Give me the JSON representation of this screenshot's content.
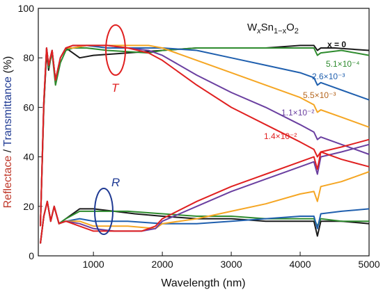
{
  "chart_data": {
    "type": "line",
    "title": "",
    "formula": {
      "main": "W",
      "sub1": "x",
      "mid": "Sn",
      "sub2": "1−x",
      "end": "O",
      "sub3": "2"
    },
    "xlabel": "Wavelength (nm)",
    "ylabel_parts": [
      {
        "text": "Reflectace",
        "color": "#c0392b"
      },
      {
        "text": " / ",
        "color": "#111111"
      },
      {
        "text": "Transmittance",
        "color": "#1f3a93"
      },
      {
        "text": " (%)",
        "color": "#111111"
      }
    ],
    "xlim": [
      200,
      5000
    ],
    "ylim": [
      0,
      100
    ],
    "xticks": [
      1000,
      2000,
      3000,
      4000,
      5000
    ],
    "yticks": [
      0,
      20,
      40,
      60,
      80,
      100
    ],
    "grid": false,
    "labels": {
      "T": {
        "text": "T",
        "color": "#e02020"
      },
      "R": {
        "text": "R",
        "color": "#1f3a93"
      },
      "x0": {
        "text": "x = 0",
        "color": "#111111"
      }
    },
    "series": [
      {
        "name": "x = 0",
        "color": "#1a1a1a",
        "label": "x = 0",
        "T": [
          [
            230,
            12
          ],
          [
            280,
            60
          ],
          [
            320,
            82
          ],
          [
            350,
            75
          ],
          [
            400,
            83
          ],
          [
            450,
            70
          ],
          [
            520,
            80
          ],
          [
            600,
            84
          ],
          [
            700,
            82
          ],
          [
            800,
            80
          ],
          [
            1000,
            81
          ],
          [
            1500,
            82
          ],
          [
            2000,
            83
          ],
          [
            2500,
            84
          ],
          [
            3000,
            84
          ],
          [
            3500,
            84
          ],
          [
            4000,
            85
          ],
          [
            4200,
            85
          ],
          [
            4250,
            83
          ],
          [
            4300,
            84
          ],
          [
            4500,
            84
          ],
          [
            5000,
            83
          ]
        ],
        "R": [
          [
            230,
            5
          ],
          [
            280,
            16
          ],
          [
            330,
            22
          ],
          [
            380,
            14
          ],
          [
            430,
            20
          ],
          [
            500,
            13
          ],
          [
            600,
            15
          ],
          [
            800,
            19
          ],
          [
            1000,
            19
          ],
          [
            1300,
            18
          ],
          [
            1600,
            17
          ],
          [
            2000,
            16
          ],
          [
            2500,
            15
          ],
          [
            3000,
            15
          ],
          [
            3500,
            14
          ],
          [
            4000,
            14
          ],
          [
            4200,
            14
          ],
          [
            4250,
            8
          ],
          [
            4300,
            14
          ],
          [
            4600,
            14
          ],
          [
            5000,
            13
          ]
        ]
      },
      {
        "name": "5.1×10⁻⁴",
        "color": "#2e8b2e",
        "label": "5.1×10⁻⁴",
        "T": [
          [
            230,
            12
          ],
          [
            280,
            60
          ],
          [
            320,
            83
          ],
          [
            350,
            76
          ],
          [
            400,
            82
          ],
          [
            450,
            69
          ],
          [
            520,
            78
          ],
          [
            600,
            83
          ],
          [
            700,
            84
          ],
          [
            900,
            84
          ],
          [
            1200,
            83
          ],
          [
            1800,
            82
          ],
          [
            2000,
            83
          ],
          [
            2500,
            84
          ],
          [
            3000,
            84
          ],
          [
            3500,
            84
          ],
          [
            4000,
            84
          ],
          [
            4200,
            84
          ],
          [
            4250,
            81
          ],
          [
            4300,
            82
          ],
          [
            4600,
            83
          ],
          [
            5000,
            81
          ]
        ],
        "R": [
          [
            230,
            5
          ],
          [
            280,
            16
          ],
          [
            330,
            22
          ],
          [
            380,
            14
          ],
          [
            430,
            20
          ],
          [
            500,
            13
          ],
          [
            600,
            15
          ],
          [
            800,
            18
          ],
          [
            1000,
            18
          ],
          [
            1500,
            18
          ],
          [
            2000,
            17
          ],
          [
            2500,
            16
          ],
          [
            3000,
            16
          ],
          [
            3500,
            15
          ],
          [
            4000,
            15
          ],
          [
            4200,
            15
          ],
          [
            4250,
            12
          ],
          [
            4300,
            15
          ],
          [
            4600,
            14
          ],
          [
            5000,
            14
          ]
        ]
      },
      {
        "name": "2.6×10⁻³",
        "color": "#1f5fae",
        "label": "2.6×10⁻³",
        "T": [
          [
            230,
            12
          ],
          [
            280,
            62
          ],
          [
            320,
            84
          ],
          [
            350,
            77
          ],
          [
            400,
            83
          ],
          [
            450,
            71
          ],
          [
            520,
            80
          ],
          [
            600,
            84
          ],
          [
            700,
            84
          ],
          [
            900,
            85
          ],
          [
            1200,
            84
          ],
          [
            1500,
            84
          ],
          [
            2000,
            84
          ],
          [
            2500,
            83
          ],
          [
            3000,
            80
          ],
          [
            3500,
            77
          ],
          [
            4000,
            74
          ],
          [
            4200,
            72
          ],
          [
            4250,
            69
          ],
          [
            4300,
            70
          ],
          [
            4600,
            67
          ],
          [
            5000,
            63
          ]
        ],
        "R": [
          [
            230,
            5
          ],
          [
            280,
            16
          ],
          [
            330,
            22
          ],
          [
            380,
            14
          ],
          [
            430,
            20
          ],
          [
            500,
            13
          ],
          [
            600,
            14
          ],
          [
            800,
            15
          ],
          [
            1000,
            14
          ],
          [
            1500,
            14
          ],
          [
            2000,
            13
          ],
          [
            2500,
            13
          ],
          [
            3000,
            14
          ],
          [
            3500,
            15
          ],
          [
            4000,
            16
          ],
          [
            4200,
            16
          ],
          [
            4250,
            11
          ],
          [
            4300,
            17
          ],
          [
            4600,
            18
          ],
          [
            5000,
            19
          ]
        ]
      },
      {
        "name": "5.5×10⁻³",
        "color": "#f5a623",
        "label": "5.5×10⁻³",
        "T": [
          [
            230,
            12
          ],
          [
            280,
            62
          ],
          [
            320,
            84
          ],
          [
            350,
            77
          ],
          [
            400,
            83
          ],
          [
            450,
            71
          ],
          [
            520,
            80
          ],
          [
            600,
            84
          ],
          [
            700,
            84
          ],
          [
            900,
            85
          ],
          [
            1200,
            85
          ],
          [
            1500,
            85
          ],
          [
            1800,
            85
          ],
          [
            2000,
            84
          ],
          [
            2500,
            79
          ],
          [
            3000,
            74
          ],
          [
            3500,
            69
          ],
          [
            4000,
            64
          ],
          [
            4200,
            61
          ],
          [
            4250,
            58
          ],
          [
            4300,
            59
          ],
          [
            4600,
            56
          ],
          [
            5000,
            52
          ]
        ],
        "R": [
          [
            230,
            5
          ],
          [
            280,
            16
          ],
          [
            330,
            22
          ],
          [
            380,
            14
          ],
          [
            430,
            20
          ],
          [
            500,
            13
          ],
          [
            600,
            14
          ],
          [
            800,
            14
          ],
          [
            1000,
            12
          ],
          [
            1500,
            12
          ],
          [
            1900,
            11
          ],
          [
            2000,
            13
          ],
          [
            2500,
            15
          ],
          [
            3000,
            18
          ],
          [
            3500,
            21
          ],
          [
            4000,
            25
          ],
          [
            4200,
            26
          ],
          [
            4250,
            22
          ],
          [
            4300,
            28
          ],
          [
            4600,
            30
          ],
          [
            5000,
            34
          ]
        ]
      },
      {
        "name": "1.1×10⁻²",
        "color": "#6a3fa0",
        "label": "1.1×10⁻²",
        "T": [
          [
            230,
            12
          ],
          [
            280,
            62
          ],
          [
            320,
            84
          ],
          [
            350,
            77
          ],
          [
            400,
            83
          ],
          [
            450,
            71
          ],
          [
            520,
            80
          ],
          [
            600,
            84
          ],
          [
            700,
            85
          ],
          [
            900,
            85
          ],
          [
            1200,
            85
          ],
          [
            1500,
            84
          ],
          [
            1800,
            83
          ],
          [
            2000,
            81
          ],
          [
            2500,
            73
          ],
          [
            3000,
            66
          ],
          [
            3500,
            60
          ],
          [
            4000,
            53
          ],
          [
            4200,
            50
          ],
          [
            4250,
            47
          ],
          [
            4300,
            48
          ],
          [
            4600,
            45
          ],
          [
            5000,
            41
          ]
        ],
        "R": [
          [
            230,
            5
          ],
          [
            280,
            16
          ],
          [
            330,
            22
          ],
          [
            380,
            14
          ],
          [
            430,
            20
          ],
          [
            500,
            13
          ],
          [
            600,
            14
          ],
          [
            800,
            13
          ],
          [
            1000,
            11
          ],
          [
            1300,
            10
          ],
          [
            1700,
            10
          ],
          [
            1900,
            11
          ],
          [
            2000,
            14
          ],
          [
            2500,
            20
          ],
          [
            3000,
            26
          ],
          [
            3500,
            31
          ],
          [
            4000,
            36
          ],
          [
            4200,
            38
          ],
          [
            4250,
            33
          ],
          [
            4300,
            40
          ],
          [
            4600,
            42
          ],
          [
            5000,
            45
          ]
        ]
      },
      {
        "name": "1.4×10⁻²",
        "color": "#e02020",
        "label": "1.4×10⁻²",
        "T": [
          [
            230,
            12
          ],
          [
            280,
            62
          ],
          [
            320,
            84
          ],
          [
            350,
            77
          ],
          [
            400,
            83
          ],
          [
            450,
            71
          ],
          [
            520,
            80
          ],
          [
            600,
            84
          ],
          [
            700,
            85
          ],
          [
            900,
            85
          ],
          [
            1200,
            85
          ],
          [
            1500,
            84
          ],
          [
            1800,
            82
          ],
          [
            2000,
            79
          ],
          [
            2500,
            69
          ],
          [
            3000,
            60
          ],
          [
            3500,
            53
          ],
          [
            4000,
            46
          ],
          [
            4200,
            43
          ],
          [
            4250,
            40
          ],
          [
            4300,
            42
          ],
          [
            4600,
            39
          ],
          [
            5000,
            36
          ]
        ],
        "R": [
          [
            230,
            5
          ],
          [
            280,
            16
          ],
          [
            330,
            22
          ],
          [
            380,
            14
          ],
          [
            430,
            20
          ],
          [
            500,
            13
          ],
          [
            600,
            14
          ],
          [
            800,
            12
          ],
          [
            1000,
            10
          ],
          [
            1300,
            10
          ],
          [
            1700,
            10
          ],
          [
            1900,
            12
          ],
          [
            2000,
            15
          ],
          [
            2500,
            22
          ],
          [
            3000,
            28
          ],
          [
            3500,
            33
          ],
          [
            4000,
            38
          ],
          [
            4200,
            40
          ],
          [
            4250,
            35
          ],
          [
            4300,
            42
          ],
          [
            4600,
            44
          ],
          [
            5000,
            47
          ]
        ]
      }
    ]
  }
}
